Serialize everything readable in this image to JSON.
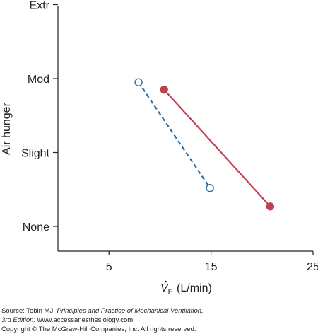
{
  "chart_data": {
    "type": "line",
    "xlabel_symbol": "V",
    "xlabel_subscript": "E",
    "xlabel_unit": "(L/min)",
    "ylabel": "Air hunger",
    "xlim": [
      0,
      25
    ],
    "x_ticks": [
      5,
      15,
      25
    ],
    "y_ticks": [
      {
        "value": 0,
        "label": "None"
      },
      {
        "value": 1,
        "label": "Slight"
      },
      {
        "value": 2,
        "label": "Mod"
      },
      {
        "value": 3,
        "label": "Extr"
      }
    ],
    "ylim": [
      0,
      3
    ],
    "grid": false,
    "series": [
      {
        "style": "dashed",
        "marker": "open-circle",
        "color": "#2a6fa3",
        "points": [
          {
            "x": 7.9,
            "y": 1.95
          },
          {
            "x": 14.9,
            "y": 0.52
          }
        ]
      },
      {
        "style": "solid",
        "marker": "filled-circle",
        "color": "#c0404f",
        "points": [
          {
            "x": 10.4,
            "y": 1.85
          },
          {
            "x": 20.8,
            "y": 0.27
          }
        ]
      }
    ]
  },
  "footer": {
    "source_prefix": "Source: Tobin MJ: ",
    "source_title": "Principles and Practice of Mechanical Ventilation,",
    "source_edition": "3rd Edition:",
    "source_url": " www.accessanesthesiology.com",
    "copyright": "Copyright © The McGraw-Hill Companies, Inc. All rights reserved."
  }
}
